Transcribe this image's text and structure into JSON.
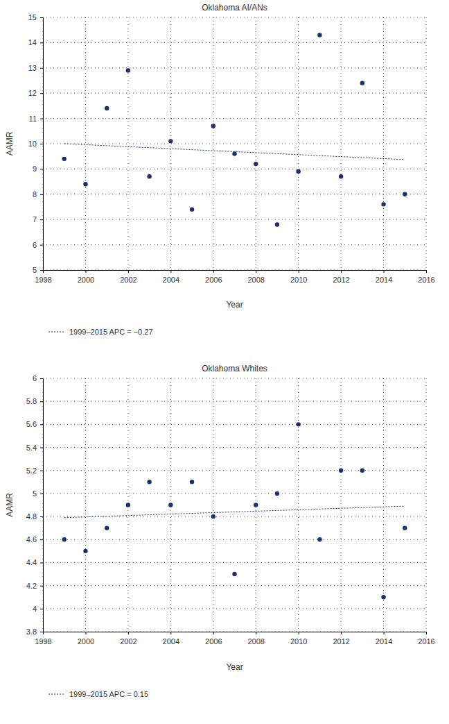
{
  "chart_data": [
    {
      "type": "scatter",
      "title": "Oklahoma AI/ANs",
      "x_label": "Year",
      "y_label": "AAMR",
      "xlim": [
        1998,
        2016
      ],
      "xticks": [
        1998,
        2000,
        2002,
        2004,
        2006,
        2008,
        2010,
        2012,
        2014,
        2016
      ],
      "ylim": [
        5,
        15
      ],
      "yticks": [
        5,
        6,
        7,
        8,
        9,
        10,
        11,
        12,
        13,
        14,
        15
      ],
      "grid": true,
      "legend": "bottom",
      "series": [
        {
          "type": "scatter",
          "marker": "circle",
          "color": "#1f2f6e",
          "x": [
            1999,
            2000,
            2001,
            2002,
            2003,
            2004,
            2005,
            2006,
            2007,
            2008,
            2009,
            2010,
            2011,
            2012,
            2013,
            2014,
            2015
          ],
          "values": [
            9.4,
            8.4,
            11.4,
            12.9,
            8.7,
            10.1,
            7.4,
            10.7,
            9.6,
            9.2,
            6.8,
            8.9,
            14.3,
            8.7,
            12.4,
            7.6,
            8.0
          ]
        },
        {
          "type": "line",
          "line_style": "dashed",
          "color": "#1f2f6e",
          "name": "1999–2015 APC = −0.27",
          "x": [
            1999,
            2015
          ],
          "values": [
            10.0,
            9.37
          ]
        }
      ]
    },
    {
      "type": "scatter",
      "title": "Oklahoma Whites",
      "x_label": "Year",
      "y_label": "AAMR",
      "xlim": [
        1998,
        2016
      ],
      "xticks": [
        1998,
        2000,
        2002,
        2004,
        2006,
        2008,
        2010,
        2012,
        2014,
        2016
      ],
      "ylim": [
        3.8,
        6
      ],
      "yticks": [
        3.8,
        4,
        4.2,
        4.4,
        4.6,
        4.8,
        5,
        5.2,
        5.4,
        5.6,
        5.8,
        6
      ],
      "grid": true,
      "legend": "bottom",
      "series": [
        {
          "type": "scatter",
          "marker": "circle",
          "color": "#1f2f6e",
          "x": [
            1999,
            2000,
            2001,
            2002,
            2003,
            2004,
            2005,
            2006,
            2007,
            2008,
            2009,
            2010,
            2011,
            2012,
            2013,
            2014,
            2015
          ],
          "values": [
            4.6,
            4.5,
            4.7,
            4.9,
            5.1,
            4.9,
            5.1,
            4.8,
            4.3,
            4.9,
            5.0,
            5.6,
            4.6,
            5.2,
            5.2,
            4.1,
            4.7
          ]
        },
        {
          "type": "line",
          "line_style": "dashed",
          "color": "#1f2f6e",
          "name": "1999–2015 APC = 0.15",
          "x": [
            1999,
            2015
          ],
          "values": [
            4.79,
            4.89
          ]
        }
      ]
    }
  ]
}
